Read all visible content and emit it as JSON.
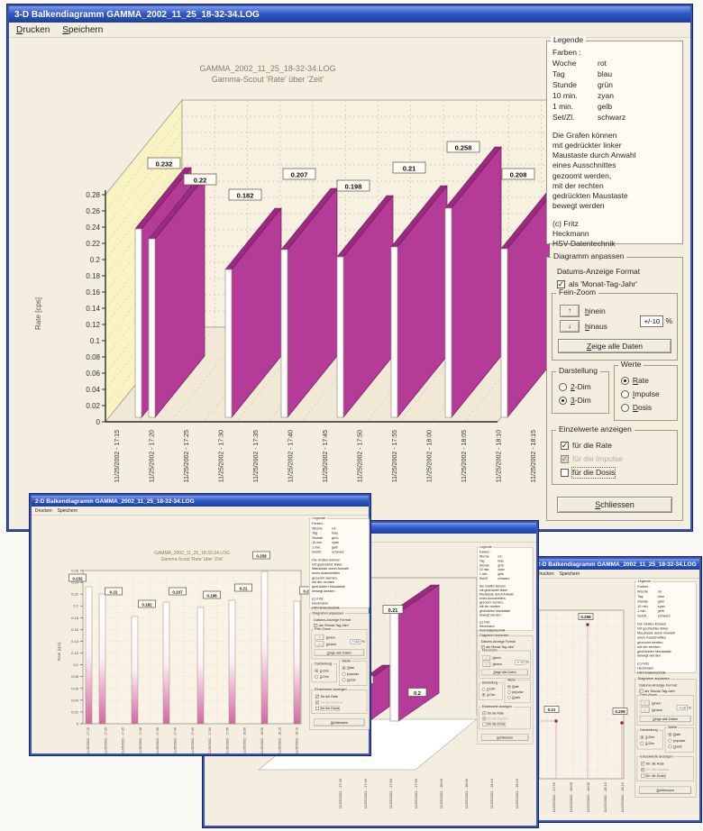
{
  "colors": {
    "titlebar_blue": "#2f58c8",
    "window_bg": "#f3eee0",
    "bar_magenta": "#b43b98",
    "bar_magenta_dark": "#992c80",
    "wall_yellow": "#f9f3c3",
    "chart_bg": "#f7f1e2",
    "value_point": "#7c1f35"
  },
  "main_window": {
    "title": "3-D Balkendiagramm GAMMA_2002_11_25_18-32-34.LOG",
    "menu": [
      "Drucken",
      "Speichern"
    ]
  },
  "chart_data": {
    "type": "bar",
    "title": "GAMMA_2002_11_25_18-32-34.LOG",
    "subtitle": "Gamma-Scout 'Rate' über 'Zeit'",
    "ylabel": "Rate [cps]",
    "ylim": [
      0,
      0.28
    ],
    "ytick_step": 0.02,
    "grid": true,
    "legend_position": "right-panel",
    "values": [
      0.232,
      0.22,
      0.182,
      0.207,
      0.198,
      0.21,
      0.258,
      0.208
    ],
    "value_labels": [
      "0.232",
      "0.22",
      "0.182",
      "0.207",
      "0.198",
      "0.21",
      "0.258",
      "0.208"
    ],
    "x_ticks": [
      "11/25/2002 - 17:15",
      "11/25/2002 - 17:20",
      "11/25/2002 - 17:25",
      "11/25/2002 - 17:30",
      "11/25/2002 - 17:35",
      "11/25/2002 - 17:40",
      "11/25/2002 - 17:45",
      "11/25/2002 - 17:50",
      "11/25/2002 - 17:55",
      "11/25/2002 - 18:00",
      "11/25/2002 - 18:05",
      "11/25/2002 - 18:10",
      "11/25/2002 - 18:15"
    ]
  },
  "panel": {
    "legend": {
      "title": "Legende",
      "farben_title": "Farben :",
      "colors": [
        [
          "Woche",
          "rot"
        ],
        [
          "Tag",
          "blau"
        ],
        [
          "Stunde",
          "grün"
        ],
        [
          "10 min.",
          "zyan"
        ],
        [
          "1 min.",
          "gelb"
        ],
        [
          "Set/Zl.",
          "schwarz"
        ]
      ],
      "info": "Die Grafen können\nmit gedrückter linker\nMaustaste durch Anwahl\neines Ausschnittes\ngezoomt werden,\nmit der rechten\ngedrückten Maustaste\nbewegt werden",
      "credit": "(c) Fritz\nHeckmann\nHSV-Datentechnik"
    },
    "adjust_title": "Diagramm anpassen",
    "datum_label": "Datums-Anzeige Format",
    "datum_option": "als 'Monat-Tag-Jahr'",
    "feinzoom": {
      "title": "Fein-Zoom",
      "in_label": "hinein",
      "out_label": "hinaus",
      "amount": "+/-10",
      "percent": "%",
      "show_all": "Zeige alle Daten"
    },
    "darstellung": {
      "title": "Darstellung",
      "options": [
        "2-Dim",
        "3-Dim"
      ]
    },
    "werte": {
      "title": "Werte",
      "options": [
        "Rate",
        "Impulse",
        "Dosis"
      ]
    },
    "einzel": {
      "title": "Einzelwerte anzeigen",
      "options": [
        "für die Rate",
        "für die Impulse",
        "für die Dosis"
      ]
    },
    "close_label": "Schliessen"
  },
  "main_state": {
    "darstellung": 1,
    "werte": 0
  },
  "window_2d": {
    "title": "2-D Balkendiagramm GAMMA_2002_11_25_18-32-34.LOG",
    "menu": [
      "Drucken",
      "Speichern"
    ],
    "state": {
      "darstellung": 0,
      "werte": 0
    }
  },
  "window_zoom": {
    "title": "3-D Balkendiagramm GAMMA_2002_11_25_18-32-34.LOG",
    "menu": [
      "Drucken",
      "Speichern"
    ],
    "bar_labels": [
      "0.21",
      "0.2",
      "0.198"
    ],
    "state": {
      "darstellung": 1,
      "werte": 0
    }
  },
  "window_points": {
    "title": "2-D Balkendiagramm GAMMA_2002_11_25_18-32-34.LOG",
    "menu": [
      "Drucken",
      "Speichern"
    ],
    "point_labels": [
      "0.21",
      "0.258",
      "0.208"
    ],
    "state": {
      "darstellung": 0,
      "werte": 0
    }
  }
}
